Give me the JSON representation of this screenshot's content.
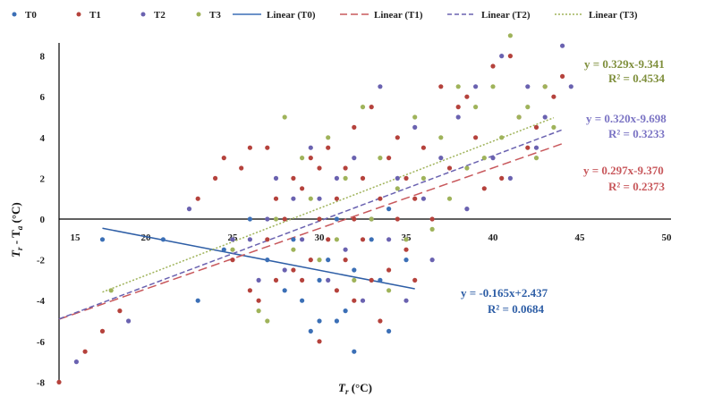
{
  "chart_data": {
    "type": "scatter",
    "title": "",
    "xlabel_main": "T",
    "xlabel_sub": "r",
    "xlabel_unit": " (°C)",
    "ylabel_t": "T",
    "ylabel_sub1": "r",
    "ylabel_dash": " - T",
    "ylabel_sub2": "a",
    "ylabel_unit": " (°C)",
    "xlim": [
      15,
      50
    ],
    "ylim": [
      -8,
      9
    ],
    "x_ticks": [
      "15",
      "20",
      "25",
      "30",
      "35",
      "40",
      "45",
      "50"
    ],
    "y_ticks": [
      "8",
      "6",
      "4",
      "2",
      "0",
      "-2",
      "-4",
      "-6",
      "-8"
    ],
    "grid": false,
    "legend_position": "top",
    "legend": [
      "T0",
      "T1",
      "T2",
      "T3",
      "Linear (T0)",
      "Linear (T1)",
      "Linear (T2)",
      "Linear (T3)"
    ],
    "colors": {
      "T0": "#3b6fb6",
      "T1": "#b5423c",
      "T2": "#6a62b0",
      "T3": "#9fb35a",
      "eq_T0": "#2e5ea6",
      "eq_T1": "#c8585c",
      "eq_T2": "#7b74c4",
      "eq_T3": "#7f8f3c"
    },
    "series": [
      {
        "name": "T0",
        "points": [
          [
            17.5,
            -1
          ],
          [
            21,
            -1
          ],
          [
            23,
            -4
          ],
          [
            24.5,
            -1.5
          ],
          [
            26,
            0
          ],
          [
            27,
            -2
          ],
          [
            28,
            -3.5
          ],
          [
            28.5,
            -1
          ],
          [
            29,
            -4
          ],
          [
            30,
            -5
          ],
          [
            30,
            -3
          ],
          [
            30.5,
            -2
          ],
          [
            31,
            0
          ],
          [
            31.5,
            -4.5
          ],
          [
            32,
            -6.5
          ],
          [
            32,
            -2.5
          ],
          [
            33,
            -1
          ],
          [
            33.5,
            -3
          ],
          [
            34,
            -5.5
          ],
          [
            34,
            0.5
          ],
          [
            35,
            -2
          ],
          [
            29.5,
            -5.5
          ],
          [
            31,
            -5
          ]
        ]
      },
      {
        "name": "T1",
        "points": [
          [
            15,
            -8
          ],
          [
            16.5,
            -6.5
          ],
          [
            17.5,
            -5.5
          ],
          [
            18.5,
            -4.5
          ],
          [
            23,
            1
          ],
          [
            24,
            2
          ],
          [
            24.5,
            3
          ],
          [
            25,
            -2
          ],
          [
            25.5,
            2.5
          ],
          [
            26,
            -3.5
          ],
          [
            26,
            3.5
          ],
          [
            26.5,
            -4
          ],
          [
            27,
            -1
          ],
          [
            27,
            3.5
          ],
          [
            27.5,
            -3
          ],
          [
            27.5,
            1
          ],
          [
            28,
            0
          ],
          [
            28.5,
            -2.5
          ],
          [
            28.5,
            2
          ],
          [
            29,
            -3
          ],
          [
            29,
            1.5
          ],
          [
            29.5,
            -2
          ],
          [
            29.5,
            3
          ],
          [
            30,
            -6
          ],
          [
            30,
            0
          ],
          [
            30,
            2.5
          ],
          [
            30.5,
            -1
          ],
          [
            30.5,
            3.5
          ],
          [
            31,
            -3.5
          ],
          [
            31,
            1
          ],
          [
            31.5,
            -2
          ],
          [
            31.5,
            2.5
          ],
          [
            32,
            -4
          ],
          [
            32,
            0
          ],
          [
            32,
            4.5
          ],
          [
            32.5,
            -1
          ],
          [
            32.5,
            2
          ],
          [
            33,
            -3
          ],
          [
            33,
            5.5
          ],
          [
            33.5,
            -5
          ],
          [
            33.5,
            1
          ],
          [
            34,
            -2.5
          ],
          [
            34,
            3
          ],
          [
            34.5,
            0
          ],
          [
            34.5,
            4
          ],
          [
            35,
            -1.5
          ],
          [
            35,
            2
          ],
          [
            35.5,
            -3
          ],
          [
            35.5,
            1
          ],
          [
            36,
            3.5
          ],
          [
            36.5,
            0
          ],
          [
            37,
            6.5
          ],
          [
            37.5,
            2.5
          ],
          [
            38,
            5.5
          ],
          [
            38.5,
            6
          ],
          [
            39,
            4
          ],
          [
            39.5,
            1.5
          ],
          [
            40,
            7.5
          ],
          [
            40.5,
            2
          ],
          [
            41,
            8
          ],
          [
            41.5,
            5
          ],
          [
            42,
            3.5
          ],
          [
            42.5,
            4.5
          ],
          [
            43,
            6.5
          ],
          [
            43.5,
            6
          ],
          [
            44,
            7
          ]
        ]
      },
      {
        "name": "T2",
        "points": [
          [
            16,
            -7
          ],
          [
            19,
            -5
          ],
          [
            22.5,
            0.5
          ],
          [
            25,
            -1
          ],
          [
            26,
            -1
          ],
          [
            26.5,
            -3
          ],
          [
            27,
            0
          ],
          [
            27.5,
            2
          ],
          [
            28,
            -2.5
          ],
          [
            28.5,
            1
          ],
          [
            29,
            -1
          ],
          [
            29.5,
            3.5
          ],
          [
            30,
            1
          ],
          [
            30.5,
            -3
          ],
          [
            31,
            2
          ],
          [
            31.5,
            -1.5
          ],
          [
            32,
            3
          ],
          [
            32.5,
            -4
          ],
          [
            33,
            0
          ],
          [
            33.5,
            6.5
          ],
          [
            34,
            -1
          ],
          [
            34.5,
            2
          ],
          [
            35,
            -4
          ],
          [
            35.5,
            4.5
          ],
          [
            36,
            1
          ],
          [
            36.5,
            -2
          ],
          [
            37,
            3
          ],
          [
            38,
            5
          ],
          [
            38.5,
            0.5
          ],
          [
            39,
            6.5
          ],
          [
            40,
            3
          ],
          [
            40.5,
            8
          ],
          [
            41,
            2
          ],
          [
            42,
            6.5
          ],
          [
            42.5,
            3.5
          ],
          [
            43,
            5
          ],
          [
            44,
            8.5
          ],
          [
            44.5,
            6.5
          ]
        ]
      },
      {
        "name": "T3",
        "points": [
          [
            18,
            -3.5
          ],
          [
            25,
            -1.5
          ],
          [
            26.5,
            -4.5
          ],
          [
            27,
            -5
          ],
          [
            27.5,
            0
          ],
          [
            28,
            5
          ],
          [
            28.5,
            -1.5
          ],
          [
            29,
            3
          ],
          [
            29.5,
            1
          ],
          [
            30,
            -2
          ],
          [
            30.5,
            4
          ],
          [
            31,
            -1
          ],
          [
            31.5,
            2
          ],
          [
            32,
            -3
          ],
          [
            32.5,
            5.5
          ],
          [
            33,
            0
          ],
          [
            33.5,
            3
          ],
          [
            34,
            -3.5
          ],
          [
            34.5,
            1.5
          ],
          [
            35,
            -1
          ],
          [
            35.5,
            5
          ],
          [
            36,
            2
          ],
          [
            36.5,
            -0.5
          ],
          [
            37,
            4
          ],
          [
            37.5,
            1
          ],
          [
            38,
            6.5
          ],
          [
            38.5,
            2.5
          ],
          [
            39,
            5.5
          ],
          [
            39.5,
            3
          ],
          [
            40,
            6.5
          ],
          [
            40.5,
            4
          ],
          [
            41,
            9
          ],
          [
            41.5,
            5
          ],
          [
            42,
            5.5
          ],
          [
            42.5,
            3
          ],
          [
            43,
            6.5
          ],
          [
            43.5,
            4.5
          ]
        ]
      }
    ],
    "trendlines": [
      {
        "name": "Linear (T0)",
        "slope": -0.165,
        "intercept": 2.437,
        "x_range": [
          17.5,
          35.5
        ],
        "style": "solid",
        "equation": "y = -0.165x+2.437",
        "r2": "R² = 0.0684"
      },
      {
        "name": "Linear (T1)",
        "slope": 0.297,
        "intercept": -9.37,
        "x_range": [
          15,
          44
        ],
        "style": "longdash",
        "equation": "y = 0.297x-9.370",
        "r2": "R² = 0.2373"
      },
      {
        "name": "Linear (T2)",
        "slope": 0.32,
        "intercept": -9.698,
        "x_range": [
          15,
          44
        ],
        "style": "dash",
        "equation": "y = 0.320x-9.698",
        "r2": "R² = 0.3233"
      },
      {
        "name": "Linear (T3)",
        "slope": 0.329,
        "intercept": -9.341,
        "x_range": [
          17.5,
          43.5
        ],
        "style": "dot",
        "equation": "y = 0.329x-9.341",
        "r2": "R² = 0.4534"
      }
    ]
  }
}
